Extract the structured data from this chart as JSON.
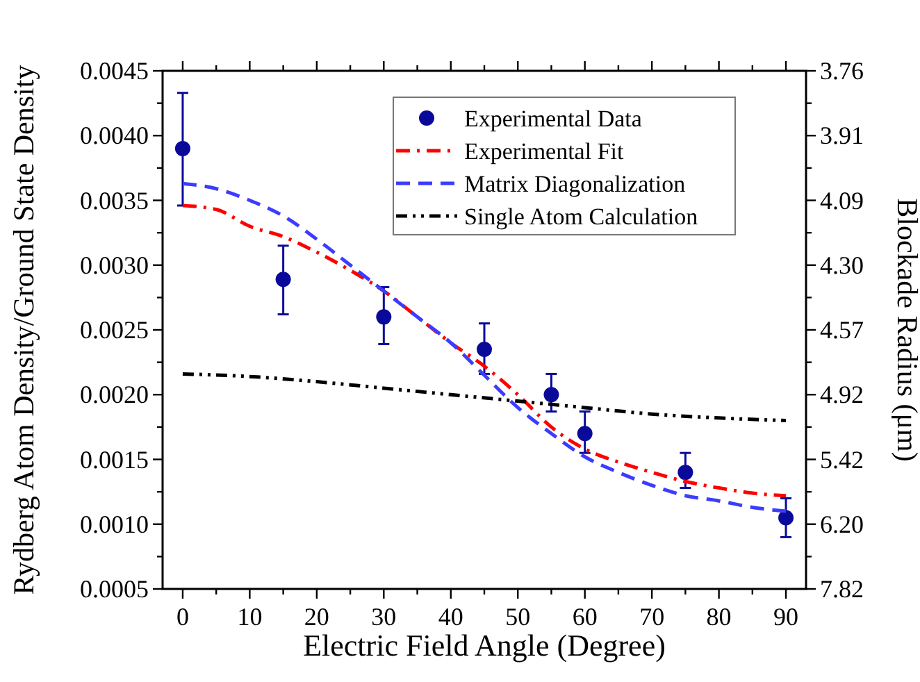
{
  "chart_data": {
    "type": "line",
    "xlabel": "Electric Field Angle (Degree)",
    "ylabel": "Rydberg Atom Density/Ground State Density",
    "y2label": "Blockade Radius (μm)",
    "xlim": [
      -3,
      93
    ],
    "xticks": [
      0,
      10,
      20,
      30,
      40,
      50,
      60,
      70,
      80,
      90
    ],
    "ylim": [
      0.0005,
      0.0045
    ],
    "yticks": [
      0.0005,
      {
        "value": 0.001,
        "label": "0.0010"
      },
      0.0015,
      {
        "value": 0.002,
        "label": "0.0020"
      },
      0.0025,
      {
        "value": 0.003,
        "label": "0.0030"
      },
      0.0035,
      {
        "value": 0.004,
        "label": "0.0040"
      },
      0.0045
    ],
    "y2_categories": [
      "3.76",
      "3.91",
      "4.09",
      "4.30",
      "4.57",
      "4.92",
      "5.42",
      "6.20",
      "7.82"
    ],
    "grid": false,
    "legend": "top right",
    "series": [
      {
        "name": "Experimental Data",
        "type": "scatter",
        "color": "#0a0a9a",
        "marker": "circle",
        "x": [
          0,
          15,
          30,
          45,
          55,
          60,
          75,
          90
        ],
        "values": [
          0.0039,
          0.00289,
          0.0026,
          0.00235,
          0.002,
          0.0017,
          0.0014,
          0.00105
        ],
        "errors": [
          [
            0.00346,
            0.00433
          ],
          [
            0.00262,
            0.00315
          ],
          [
            0.00239,
            0.00283
          ],
          [
            0.00216,
            0.00255
          ],
          [
            0.00187,
            0.00216
          ],
          [
            0.00155,
            0.00187
          ],
          [
            0.00128,
            0.00155
          ],
          [
            0.0009,
            0.0012
          ]
        ]
      },
      {
        "name": "Experimental Fit",
        "color": "#ff0000",
        "line_style": "dashdot",
        "x": [
          0,
          5,
          10,
          15,
          20,
          25,
          30,
          35,
          40,
          45,
          50,
          55,
          60,
          65,
          70,
          75,
          80,
          85,
          90
        ],
        "values": [
          0.00346,
          0.00343,
          0.0033,
          0.00322,
          0.0031,
          0.00296,
          0.0028,
          0.0026,
          0.0024,
          0.00222,
          0.002,
          0.00175,
          0.00158,
          0.00148,
          0.0014,
          0.00133,
          0.00128,
          0.00124,
          0.00122
        ]
      },
      {
        "name": "Matrix Diagonalization",
        "color": "#3c3cff",
        "line_style": "dashed",
        "x": [
          0,
          5,
          10,
          15,
          20,
          25,
          30,
          35,
          40,
          45,
          50,
          55,
          60,
          65,
          70,
          75,
          80,
          85,
          90
        ],
        "values": [
          0.00363,
          0.00359,
          0.0035,
          0.00338,
          0.0032,
          0.003,
          0.0028,
          0.0026,
          0.0024,
          0.00215,
          0.0019,
          0.0017,
          0.00152,
          0.0014,
          0.0013,
          0.00122,
          0.00118,
          0.00113,
          0.0011
        ]
      },
      {
        "name": "Single Atom Calculation",
        "color": "#000000",
        "line_style": "dashdotdot",
        "x": [
          0,
          10,
          20,
          30,
          40,
          50,
          60,
          70,
          80,
          90
        ],
        "values": [
          0.00216,
          0.00214,
          0.0021,
          0.00205,
          0.002,
          0.00195,
          0.0019,
          0.00185,
          0.00182,
          0.0018
        ]
      }
    ]
  }
}
